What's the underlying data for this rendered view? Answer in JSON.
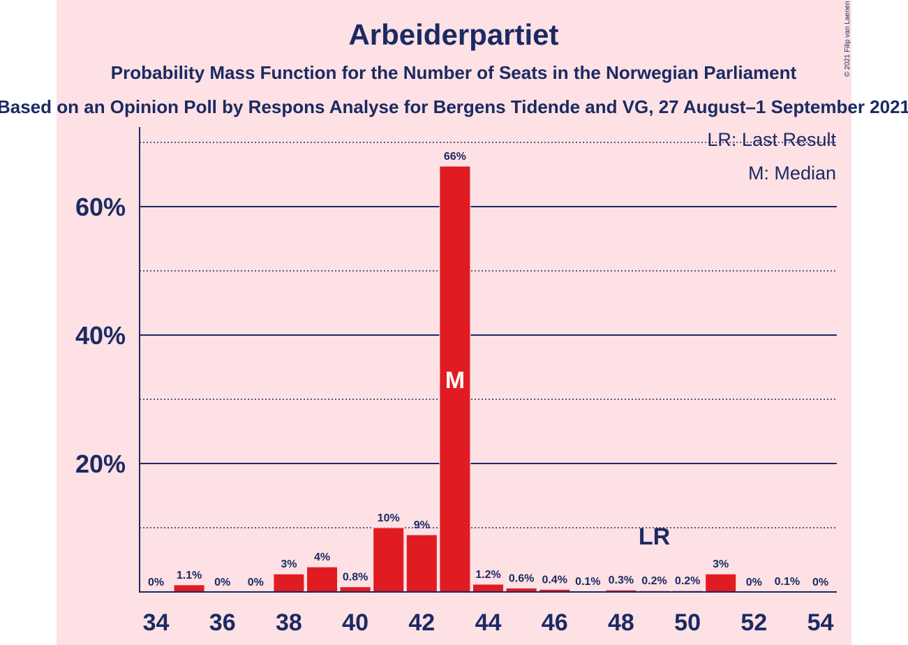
{
  "chart_data": {
    "type": "bar",
    "title": "Arbeiderpartiet",
    "subtitle": "Probability Mass Function for the Number of Seats in the Norwegian Parliament",
    "subtitle2": "Based on an Opinion Poll by Respons Analyse for Bergens Tidende and VG, 27 August–1 September 2021",
    "copyright": "© 2021 Filip van Laenen",
    "legend": [
      "LR: Last Result",
      "M: Median"
    ],
    "legend_position": "top-right",
    "x": [
      34,
      35,
      36,
      37,
      38,
      39,
      40,
      41,
      42,
      43,
      44,
      45,
      46,
      47,
      48,
      49,
      50,
      51,
      52,
      53,
      54
    ],
    "values": [
      0,
      1.1,
      0,
      0,
      2.8,
      3.9,
      0.8,
      10,
      8.9,
      66.3,
      1.2,
      0.6,
      0.4,
      0.1,
      0.3,
      0.2,
      0.2,
      2.8,
      0,
      0.1,
      0
    ],
    "data_labels": [
      "0%",
      "1.1%",
      "0%",
      "0%",
      "3%",
      "4%",
      "0.8%",
      "10%",
      "9%",
      "66%",
      "1.2%",
      "0.6%",
      "0.4%",
      "0.1%",
      "0.3%",
      "0.2%",
      "0.2%",
      "3%",
      "0%",
      "0.1%",
      "0%"
    ],
    "x_ticks": [
      34,
      36,
      38,
      40,
      42,
      44,
      46,
      48,
      50,
      52,
      54
    ],
    "y_ticks": [
      20,
      40,
      60
    ],
    "y_tick_labels": [
      "20%",
      "40%",
      "60%"
    ],
    "ylim": [
      0,
      72
    ],
    "median_seat": 43,
    "median_marker": "M",
    "last_result_seat": 49,
    "last_result_marker": "LR",
    "bar_color": "#e11b22",
    "text_color": "#1b2a63",
    "background_color": "#fde1e4"
  }
}
